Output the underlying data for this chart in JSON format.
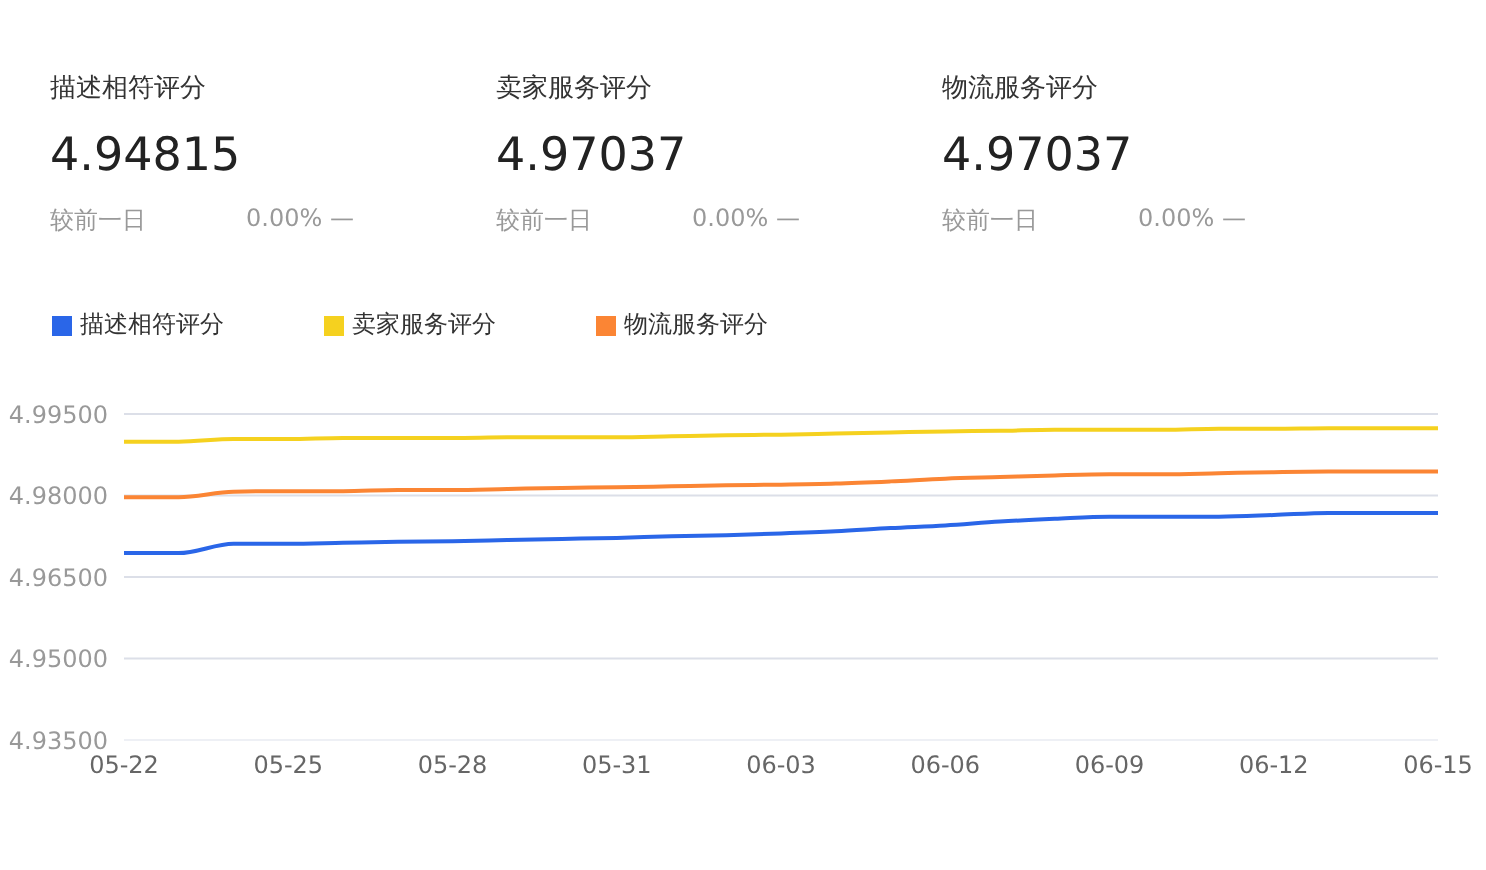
{
  "chart_data": [
    {
      "type": "other",
      "title": "描述相符评分",
      "annotations": [
        "4.94815",
        "较前一日",
        "0.00%",
        "—"
      ]
    },
    {
      "type": "other",
      "title": "卖家服务评分",
      "annotations": [
        "4.97037",
        "较前一日",
        "0.00%",
        "—"
      ]
    },
    {
      "type": "other",
      "title": "物流服务评分",
      "annotations": [
        "4.97037",
        "较前一日",
        "0.00%",
        "—"
      ]
    },
    {
      "type": "line",
      "categories": [
        "05-22",
        null,
        null,
        "05-25",
        null,
        null,
        "05-28",
        null,
        null,
        "05-31",
        null,
        null,
        "06-03",
        null,
        null,
        "06-06",
        null,
        null,
        "06-09",
        null,
        null,
        "06-12",
        null,
        null,
        "06-15"
      ],
      "series": [
        {
          "name": "描述相符评分",
          "color": "#2a66e8",
          "values": [
            4.9694,
            4.9694,
            4.9711,
            4.9711,
            4.9713,
            4.9715,
            4.9716,
            4.9718,
            4.972,
            4.9722,
            4.9725,
            4.9727,
            4.973,
            4.9734,
            4.974,
            4.9745,
            4.9752,
            4.9757,
            4.9761,
            4.9761,
            4.9761,
            4.9764,
            4.9768,
            4.9768,
            4.9768
          ]
        },
        {
          "name": "卖家服务评分",
          "color": "#f5d11f",
          "values": [
            4.9899,
            4.9899,
            4.9904,
            4.9904,
            4.9906,
            4.9906,
            4.9906,
            4.9907,
            4.9907,
            4.9907,
            4.9909,
            4.9911,
            4.9912,
            4.9914,
            4.9916,
            4.9918,
            4.9919,
            4.9921,
            4.9921,
            4.9921,
            4.9923,
            4.9923,
            4.9924,
            4.9924,
            4.9924
          ]
        },
        {
          "name": "物流服务评分",
          "color": "#fb8534",
          "values": [
            4.9797,
            4.9797,
            4.9807,
            4.9808,
            4.9808,
            4.981,
            4.981,
            4.9812,
            4.9814,
            4.9815,
            4.9817,
            4.9819,
            4.982,
            4.9822,
            4.9826,
            4.9831,
            4.9834,
            4.9837,
            4.9839,
            4.9839,
            4.9841,
            4.9843,
            4.9844,
            4.9844,
            4.9844
          ]
        }
      ],
      "ylim": [
        4.935,
        4.995
      ],
      "yticks": [
        {
          "value": 4.935,
          "label": "4.93500"
        },
        {
          "value": 4.95,
          "label": "4.95000"
        },
        {
          "value": 4.965,
          "label": "4.96500"
        },
        {
          "value": 4.98,
          "label": "4.98000"
        },
        {
          "value": 4.995,
          "label": "4.99500"
        }
      ],
      "grid": "y",
      "legend": "top left"
    }
  ]
}
